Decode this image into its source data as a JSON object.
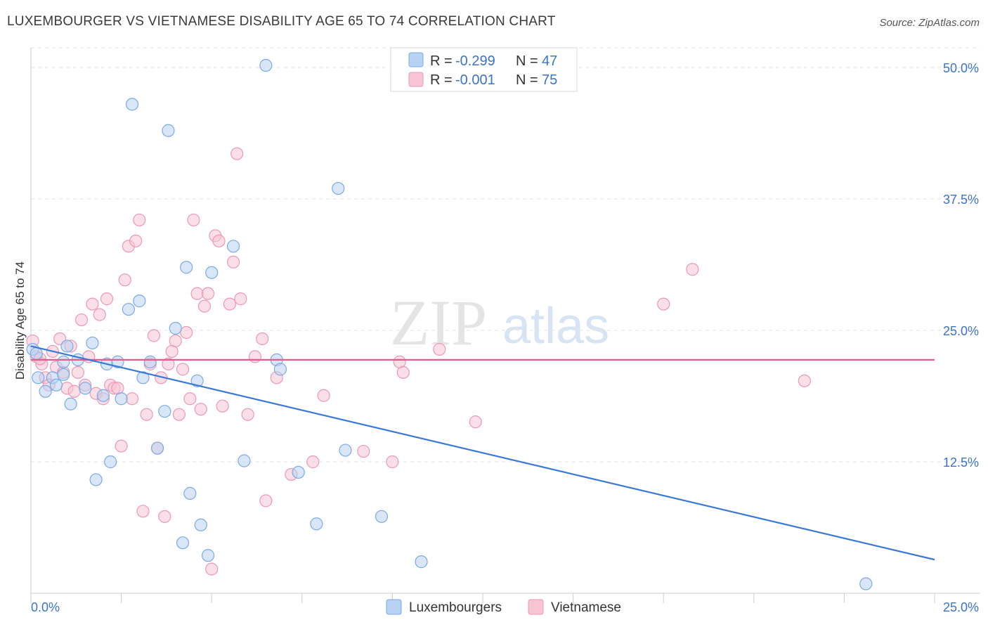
{
  "title": "LUXEMBOURGER VS VIETNAMESE DISABILITY AGE 65 TO 74 CORRELATION CHART",
  "source": "Source: ZipAtlas.com",
  "watermark": {
    "zip": "ZIP",
    "atlas": "atlas"
  },
  "colors": {
    "blue_fill": "#b8d2f2",
    "blue_stroke": "#7aaae6",
    "blue_line": "#3a78d6",
    "pink_fill": "#f7c4d4",
    "pink_stroke": "#ec98b4",
    "pink_line": "#e0608a",
    "axis_text": "#3a74c9",
    "grid": "#e2e2e2"
  },
  "legend": {
    "items": [
      {
        "r_label": "R = ",
        "r_value": "-0.299",
        "n_label": "N = ",
        "n_value": "47"
      },
      {
        "r_label": "R = ",
        "r_value": "-0.001",
        "n_label": "N = ",
        "n_value": "75"
      }
    ]
  },
  "chart_data": {
    "type": "scatter",
    "title": "LUXEMBOURGER VS VIETNAMESE DISABILITY AGE 65 TO 74 CORRELATION CHART",
    "xlabel": "",
    "ylabel": "Disability Age 65 to 74",
    "xlim": [
      0,
      25
    ],
    "ylim": [
      0,
      52
    ],
    "x_tick_labels": [
      "0.0%",
      "25.0%"
    ],
    "y_tick_labels": [
      "12.5%",
      "25.0%",
      "37.5%",
      "50.0%"
    ],
    "y_ticks": [
      12.5,
      25.0,
      37.5,
      50.0
    ],
    "grid": "horizontal dashed",
    "legend_position": "top-center",
    "series": [
      {
        "name": "Luxembourgers",
        "trend": {
          "x": [
            0,
            25
          ],
          "y": [
            23.5,
            3.2
          ]
        },
        "points": [
          [
            0.05,
            23.2
          ],
          [
            0.2,
            20.5
          ],
          [
            0.4,
            19.2
          ],
          [
            0.6,
            20.5
          ],
          [
            0.7,
            19.8
          ],
          [
            0.9,
            22.0
          ],
          [
            0.9,
            20.8
          ],
          [
            1.0,
            23.5
          ],
          [
            1.1,
            18.0
          ],
          [
            1.3,
            22.2
          ],
          [
            1.5,
            19.5
          ],
          [
            1.7,
            23.8
          ],
          [
            1.8,
            10.8
          ],
          [
            2.0,
            18.8
          ],
          [
            2.1,
            21.8
          ],
          [
            2.2,
            12.5
          ],
          [
            2.4,
            22.0
          ],
          [
            2.5,
            18.5
          ],
          [
            2.7,
            27.0
          ],
          [
            2.8,
            46.5
          ],
          [
            3.0,
            27.8
          ],
          [
            3.1,
            20.5
          ],
          [
            3.3,
            22.0
          ],
          [
            3.5,
            13.8
          ],
          [
            3.7,
            17.3
          ],
          [
            3.8,
            44.0
          ],
          [
            4.0,
            25.2
          ],
          [
            4.2,
            4.8
          ],
          [
            4.3,
            31.0
          ],
          [
            4.4,
            9.5
          ],
          [
            4.6,
            20.2
          ],
          [
            4.7,
            6.5
          ],
          [
            4.9,
            3.6
          ],
          [
            5.0,
            30.5
          ],
          [
            5.6,
            33.0
          ],
          [
            5.9,
            12.6
          ],
          [
            6.5,
            50.2
          ],
          [
            6.8,
            22.2
          ],
          [
            6.9,
            21.3
          ],
          [
            7.4,
            11.5
          ],
          [
            7.9,
            6.6
          ],
          [
            8.5,
            38.5
          ],
          [
            8.7,
            13.6
          ],
          [
            9.7,
            7.3
          ],
          [
            10.8,
            3.0
          ],
          [
            23.1,
            0.9
          ],
          [
            0.15,
            22.8
          ]
        ]
      },
      {
        "name": "Vietnamese",
        "trend": {
          "x": [
            0,
            25
          ],
          "y": [
            22.2,
            22.2
          ]
        },
        "points": [
          [
            0.05,
            24.0
          ],
          [
            0.15,
            22.5
          ],
          [
            0.3,
            21.8
          ],
          [
            0.4,
            20.5
          ],
          [
            0.5,
            19.8
          ],
          [
            0.6,
            23.0
          ],
          [
            0.7,
            21.5
          ],
          [
            0.8,
            24.2
          ],
          [
            0.9,
            21.0
          ],
          [
            1.0,
            19.5
          ],
          [
            1.1,
            23.5
          ],
          [
            1.2,
            19.2
          ],
          [
            1.3,
            21.0
          ],
          [
            1.4,
            26.0
          ],
          [
            1.5,
            19.8
          ],
          [
            1.6,
            22.5
          ],
          [
            1.7,
            27.5
          ],
          [
            1.8,
            19.0
          ],
          [
            1.9,
            26.5
          ],
          [
            2.0,
            18.5
          ],
          [
            2.1,
            28.0
          ],
          [
            2.2,
            19.8
          ],
          [
            2.3,
            19.5
          ],
          [
            2.5,
            14.0
          ],
          [
            2.6,
            29.8
          ],
          [
            2.7,
            33.0
          ],
          [
            2.8,
            18.5
          ],
          [
            2.9,
            33.5
          ],
          [
            3.0,
            35.5
          ],
          [
            3.1,
            7.8
          ],
          [
            3.2,
            17.0
          ],
          [
            3.3,
            21.8
          ],
          [
            3.4,
            24.5
          ],
          [
            3.5,
            13.8
          ],
          [
            3.6,
            20.5
          ],
          [
            3.7,
            7.3
          ],
          [
            3.8,
            21.8
          ],
          [
            3.9,
            23.0
          ],
          [
            4.0,
            24.0
          ],
          [
            4.1,
            17.0
          ],
          [
            4.2,
            21.3
          ],
          [
            4.3,
            24.8
          ],
          [
            4.4,
            18.5
          ],
          [
            4.5,
            35.5
          ],
          [
            4.6,
            28.5
          ],
          [
            4.7,
            17.5
          ],
          [
            4.8,
            27.3
          ],
          [
            4.9,
            28.5
          ],
          [
            5.0,
            2.3
          ],
          [
            5.1,
            34.0
          ],
          [
            5.2,
            33.5
          ],
          [
            5.3,
            17.8
          ],
          [
            5.5,
            27.5
          ],
          [
            5.6,
            31.5
          ],
          [
            5.7,
            41.8
          ],
          [
            5.8,
            28.0
          ],
          [
            6.0,
            17.0
          ],
          [
            6.2,
            22.5
          ],
          [
            6.4,
            24.2
          ],
          [
            6.5,
            8.8
          ],
          [
            6.8,
            20.5
          ],
          [
            7.2,
            11.3
          ],
          [
            7.8,
            12.5
          ],
          [
            8.1,
            18.8
          ],
          [
            9.2,
            13.5
          ],
          [
            10.0,
            12.5
          ],
          [
            10.2,
            22.0
          ],
          [
            10.3,
            21.0
          ],
          [
            11.3,
            23.2
          ],
          [
            12.3,
            16.3
          ],
          [
            17.5,
            27.5
          ],
          [
            18.3,
            30.8
          ],
          [
            21.4,
            20.2
          ],
          [
            0.25,
            22.3
          ],
          [
            2.4,
            19.5
          ]
        ]
      }
    ]
  }
}
